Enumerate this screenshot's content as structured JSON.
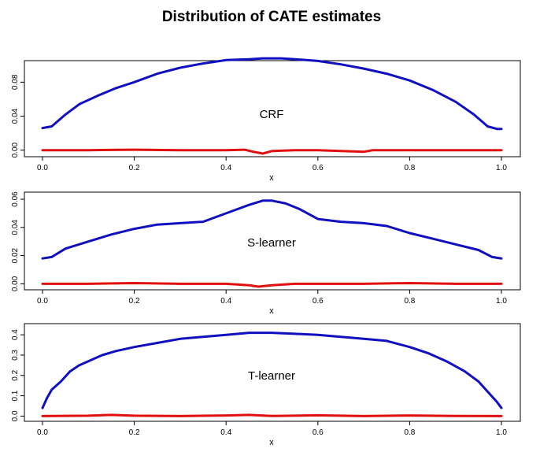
{
  "chart_data": {
    "type": "line",
    "title": "Distribution of CATE estimates",
    "series_colors": {
      "upper": "#1010c0",
      "lower": "#e01010"
    },
    "panels": [
      {
        "annotation": "CRF",
        "xlabel": "x",
        "xlim": [
          0,
          1
        ],
        "ylim": [
          -0.004,
          0.097
        ],
        "xticks": [
          "0.0",
          "0.2",
          "0.4",
          "0.6",
          "0.8",
          "1.0"
        ],
        "yticks": [
          "0.00",
          "0.04",
          "0.08"
        ],
        "series": [
          {
            "x": [
              0,
              0.02,
              0.05,
              0.08,
              0.12,
              0.16,
              0.2,
              0.25,
              0.3,
              0.35,
              0.4,
              0.45,
              0.48,
              0.5,
              0.52,
              0.55,
              0.6,
              0.65,
              0.7,
              0.75,
              0.8,
              0.85,
              0.9,
              0.94,
              0.97,
              0.99,
              1.0
            ],
            "y": [
              0.026,
              0.028,
              0.042,
              0.054,
              0.064,
              0.073,
              0.08,
              0.09,
              0.097,
              0.102,
              0.106,
              0.107,
              0.108,
              0.108,
              0.108,
              0.107,
              0.105,
              0.101,
              0.096,
              0.09,
              0.082,
              0.071,
              0.057,
              0.042,
              0.028,
              0.025,
              0.025
            ]
          },
          {
            "x": [
              0,
              0.1,
              0.2,
              0.3,
              0.4,
              0.44,
              0.46,
              0.48,
              0.5,
              0.55,
              0.6,
              0.7,
              0.72,
              0.8,
              0.9,
              1.0
            ],
            "y": [
              0.0,
              0.0,
              0.0005,
              0.0,
              0.0,
              0.0005,
              -0.002,
              -0.004,
              -0.001,
              0.0,
              0.0,
              -0.002,
              0.0,
              0.0,
              0.0,
              0.0
            ]
          }
        ]
      },
      {
        "annotation": "S-learner",
        "xlabel": "x",
        "xlim": [
          0,
          1
        ],
        "ylim": [
          -0.002,
          0.06
        ],
        "xticks": [
          "0.0",
          "0.2",
          "0.4",
          "0.6",
          "0.8",
          "1.0"
        ],
        "yticks": [
          "0.00",
          "0.02",
          "0.04",
          "0.06"
        ],
        "series": [
          {
            "x": [
              0,
              0.02,
              0.05,
              0.1,
              0.15,
              0.2,
              0.25,
              0.3,
              0.35,
              0.4,
              0.45,
              0.48,
              0.5,
              0.53,
              0.56,
              0.6,
              0.65,
              0.7,
              0.75,
              0.8,
              0.85,
              0.9,
              0.95,
              0.98,
              1.0
            ],
            "y": [
              0.018,
              0.019,
              0.025,
              0.03,
              0.035,
              0.039,
              0.042,
              0.043,
              0.044,
              0.05,
              0.056,
              0.059,
              0.059,
              0.057,
              0.053,
              0.046,
              0.044,
              0.043,
              0.041,
              0.036,
              0.032,
              0.028,
              0.024,
              0.019,
              0.018
            ]
          },
          {
            "x": [
              0,
              0.1,
              0.2,
              0.3,
              0.4,
              0.45,
              0.47,
              0.5,
              0.55,
              0.6,
              0.7,
              0.8,
              0.9,
              1.0
            ],
            "y": [
              0.0,
              0.0,
              0.0005,
              0.0,
              0.0,
              -0.001,
              -0.002,
              -0.001,
              0.0,
              0.0,
              0.0,
              0.0005,
              0.0,
              0.0
            ]
          }
        ]
      },
      {
        "annotation": "T-learner",
        "xlabel": "x",
        "xlim": [
          0,
          1
        ],
        "ylim": [
          -0.01,
          0.42
        ],
        "xticks": [
          "0.0",
          "0.2",
          "0.4",
          "0.6",
          "0.8",
          "1.0"
        ],
        "yticks": [
          "0.0",
          "0.1",
          "0.2",
          "0.3",
          "0.4"
        ],
        "series": [
          {
            "x": [
              0,
              0.01,
              0.02,
              0.04,
              0.06,
              0.08,
              0.1,
              0.13,
              0.16,
              0.2,
              0.25,
              0.3,
              0.35,
              0.4,
              0.45,
              0.5,
              0.55,
              0.6,
              0.65,
              0.7,
              0.75,
              0.8,
              0.84,
              0.88,
              0.92,
              0.95,
              0.97,
              0.99,
              1.0
            ],
            "y": [
              0.04,
              0.09,
              0.13,
              0.17,
              0.22,
              0.25,
              0.27,
              0.3,
              0.32,
              0.34,
              0.36,
              0.38,
              0.39,
              0.4,
              0.41,
              0.41,
              0.405,
              0.4,
              0.39,
              0.38,
              0.37,
              0.34,
              0.31,
              0.27,
              0.22,
              0.17,
              0.12,
              0.07,
              0.04
            ]
          },
          {
            "x": [
              0,
              0.1,
              0.15,
              0.2,
              0.3,
              0.4,
              0.45,
              0.5,
              0.6,
              0.7,
              0.8,
              0.9,
              1.0
            ],
            "y": [
              0.0,
              0.002,
              0.006,
              0.002,
              0.0,
              0.003,
              0.006,
              0.001,
              0.004,
              0.0,
              0.003,
              0.001,
              0.0
            ]
          }
        ]
      }
    ]
  }
}
